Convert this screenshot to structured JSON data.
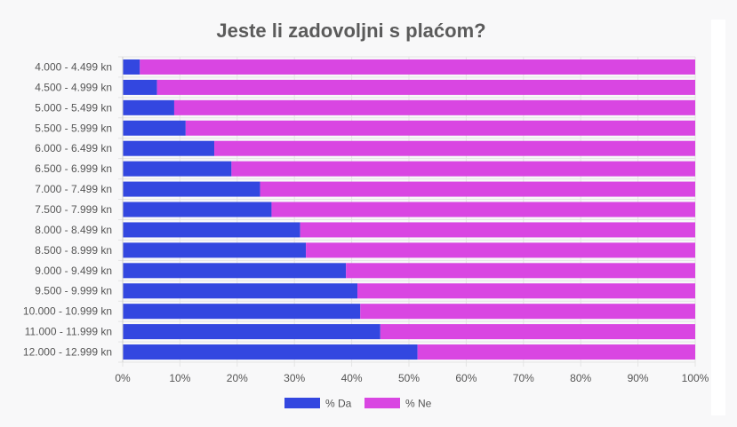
{
  "chart_data": {
    "type": "bar",
    "orientation": "horizontal",
    "stacked": true,
    "title": "Jeste li zadovoljni s plaćom?",
    "categories": [
      "4.000 - 4.499 kn",
      "4.500 - 4.999 kn",
      "5.000 - 5.499 kn",
      "5.500 - 5.999 kn",
      "6.000 - 6.499 kn",
      "6.500 - 6.999 kn",
      "7.000 - 7.499 kn",
      "7.500 - 7.999 kn",
      "8.000 - 8.499 kn",
      "8.500 - 8.999 kn",
      "9.000 - 9.499 kn",
      "9.500 - 9.999 kn",
      "10.000 - 10.999 kn",
      "11.000 - 11.999 kn",
      "12.000 - 12.999 kn"
    ],
    "series": [
      {
        "name": "% Da",
        "color": "#3347e0",
        "values": [
          3,
          6,
          9,
          11,
          16,
          19,
          24,
          26,
          31,
          32,
          39,
          41,
          41.5,
          45,
          51.5
        ]
      },
      {
        "name": "% Ne",
        "color": "#d946e2",
        "values": [
          97,
          94,
          91,
          89,
          84,
          81,
          76,
          74,
          69,
          68,
          61,
          59,
          58.5,
          55,
          48.5
        ]
      }
    ],
    "xlim": [
      0,
      100
    ],
    "xticks": [
      "0%",
      "10%",
      "20%",
      "30%",
      "40%",
      "50%",
      "60%",
      "70%",
      "80%",
      "90%",
      "100%"
    ],
    "grid": true,
    "legend_position": "bottom"
  }
}
